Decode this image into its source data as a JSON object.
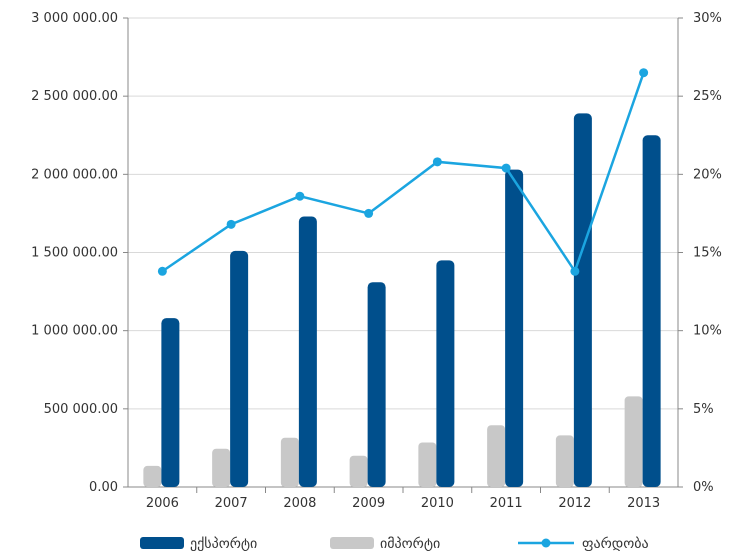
{
  "chart_data": {
    "type": "bar",
    "categories": [
      "2006",
      "2007",
      "2008",
      "2009",
      "2010",
      "2011",
      "2012",
      "2013"
    ],
    "series": [
      {
        "name": "ექსპორტი",
        "kind": "bar",
        "axis": "left",
        "color": "#004f8c",
        "values": [
          1080000,
          1510000,
          1730000,
          1310000,
          1450000,
          2030000,
          2390000,
          2250000
        ]
      },
      {
        "name": "იმპორტი",
        "kind": "bar",
        "axis": "left",
        "color": "#c8c8c8",
        "values": [
          135000,
          245000,
          315000,
          200000,
          285000,
          395000,
          330000,
          580000
        ]
      },
      {
        "name": "ფარდობა",
        "kind": "line",
        "axis": "right",
        "color": "#1ba5e0",
        "values": [
          13.8,
          16.8,
          18.6,
          17.5,
          20.8,
          20.4,
          13.8,
          26.5
        ]
      }
    ],
    "y_left": {
      "min": 0,
      "max": 3000000,
      "ticks": [
        "0.00",
        "500 000.00",
        "1 000 000.00",
        "1 500 000.00",
        "2 000 000.00",
        "2 500 000.00",
        "3 000 000.00"
      ]
    },
    "y_right": {
      "min": 0,
      "max": 30,
      "ticks": [
        "0%",
        "5%",
        "10%",
        "15%",
        "20%",
        "25%",
        "30%"
      ]
    },
    "grid": "horizontal",
    "legend_position": "bottom"
  }
}
